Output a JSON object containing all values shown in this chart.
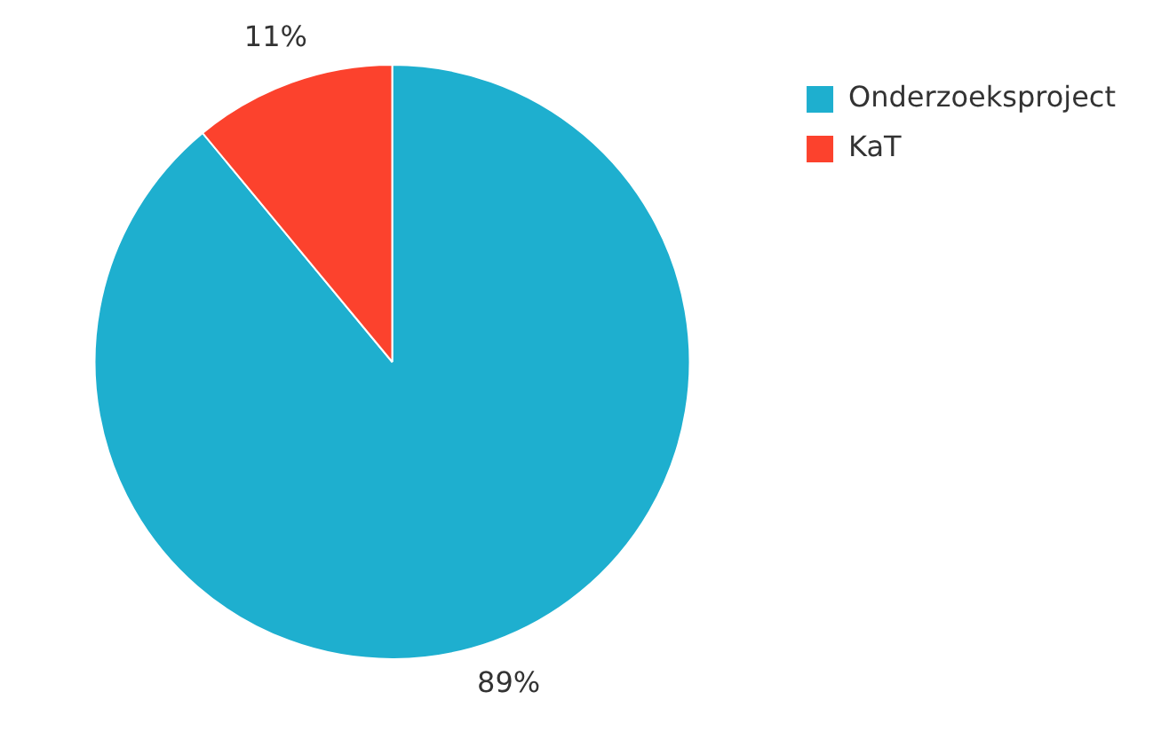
{
  "chart_data": {
    "type": "pie",
    "categories": [
      "Onderzoeksproject",
      "KaT"
    ],
    "values": [
      89,
      11
    ],
    "colors": [
      "#1eafcf",
      "#fc422d"
    ],
    "value_labels": [
      "89%",
      "11%"
    ],
    "legend": "top right"
  }
}
